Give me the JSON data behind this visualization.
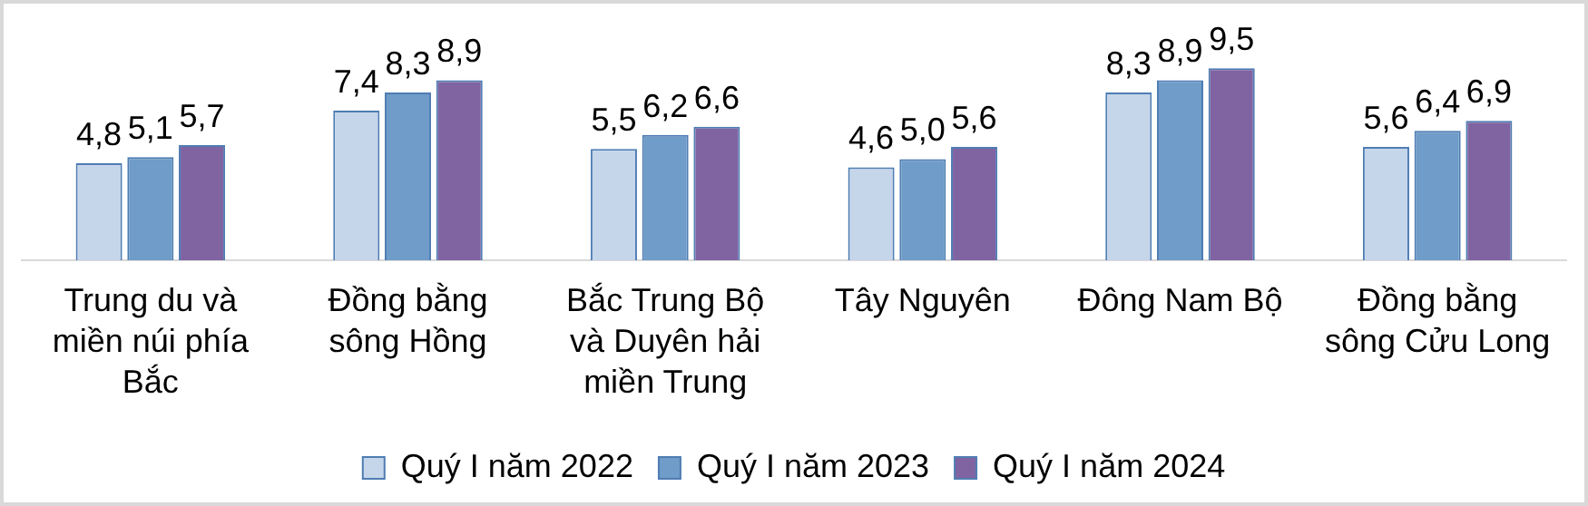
{
  "chart_data": {
    "type": "bar",
    "categories": [
      "Trung du và miền núi phía Bắc",
      "Đồng bằng sông Hồng",
      "Bắc Trung Bộ và Duyên hải miền Trung",
      "Tây Nguyên",
      "Đông Nam Bộ",
      "Đồng bằng sông Cửu Long"
    ],
    "series": [
      {
        "name": "Quý I năm 2022",
        "color": "#c5d5ea",
        "values": [
          4.8,
          7.4,
          5.5,
          4.6,
          8.3,
          5.6
        ],
        "value_labels": [
          "4,8",
          "7,4",
          "5,5",
          "4,6",
          "8,3",
          "5,6"
        ]
      },
      {
        "name": "Quý I năm 2023",
        "color": "#6f9cc8",
        "values": [
          5.1,
          8.3,
          6.2,
          5.0,
          8.9,
          6.4
        ],
        "value_labels": [
          "5,1",
          "8,3",
          "6,2",
          "5,0",
          "8,9",
          "6,4"
        ]
      },
      {
        "name": "Quý I năm 2024",
        "color": "#8064a2",
        "values": [
          5.7,
          8.9,
          6.6,
          5.6,
          9.5,
          6.9
        ],
        "value_labels": [
          "5,7",
          "8,9",
          "6,6",
          "5,6",
          "9,5",
          "6,9"
        ]
      }
    ],
    "tick_labels": "x",
    "grid": false,
    "legend": "bottom"
  }
}
